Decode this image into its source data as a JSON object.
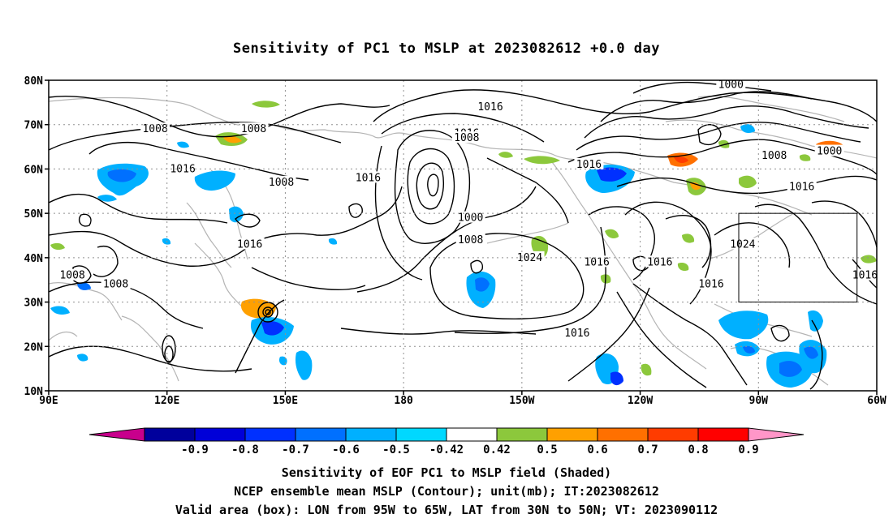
{
  "title": "Sensitivity of PC1 to MSLP at 2023082612 +0.0 day",
  "map": {
    "lon_range": [
      90,
      300
    ],
    "lat_range": [
      10,
      80
    ],
    "lat_ticks": [
      "10N",
      "20N",
      "30N",
      "40N",
      "50N",
      "60N",
      "70N",
      "80N"
    ],
    "lon_ticks": [
      "90E",
      "120E",
      "150E",
      "180",
      "150W",
      "120W",
      "90W",
      "60W"
    ],
    "valid_box": {
      "lon_west": -95,
      "lon_east": -65,
      "lat_south": 30,
      "lat_north": 50
    },
    "contour_labels": [
      {
        "text": "1016",
        "lon": 202,
        "lat": 74
      },
      {
        "text": "1000",
        "lon": 263,
        "lat": 79
      },
      {
        "text": "1008",
        "lon": 117,
        "lat": 69
      },
      {
        "text": "1008",
        "lon": 142,
        "lat": 69
      },
      {
        "text": "1016",
        "lon": 196,
        "lat": 68
      },
      {
        "text": "1008",
        "lon": 196,
        "lat": 67
      },
      {
        "text": "1016",
        "lon": 124,
        "lat": 60
      },
      {
        "text": "1008",
        "lon": 149,
        "lat": 57
      },
      {
        "text": "1016",
        "lon": 171,
        "lat": 58
      },
      {
        "text": "1016",
        "lon": 227,
        "lat": 61
      },
      {
        "text": "1008",
        "lon": 274,
        "lat": 63
      },
      {
        "text": "1000",
        "lon": 288,
        "lat": 64
      },
      {
        "text": "1016",
        "lon": 281,
        "lat": 56
      },
      {
        "text": "1000",
        "lon": 197,
        "lat": 49
      },
      {
        "text": "1008",
        "lon": 197,
        "lat": 44
      },
      {
        "text": "1016",
        "lon": 141,
        "lat": 43
      },
      {
        "text": "1024",
        "lon": 266,
        "lat": 43
      },
      {
        "text": "1024",
        "lon": 212,
        "lat": 40
      },
      {
        "text": "1016",
        "lon": 229,
        "lat": 39
      },
      {
        "text": "1016",
        "lon": 245,
        "lat": 39
      },
      {
        "text": "1008",
        "lon": 96,
        "lat": 36
      },
      {
        "text": "1008",
        "lon": 107,
        "lat": 34
      },
      {
        "text": "1016",
        "lon": 258,
        "lat": 34
      },
      {
        "text": "1016",
        "lon": 297,
        "lat": 36
      },
      {
        "text": "1016",
        "lon": 224,
        "lat": 23
      }
    ]
  },
  "colorbar": {
    "labels": [
      "-0.9",
      "-0.8",
      "-0.7",
      "-0.6",
      "-0.5",
      "-0.42",
      "0.42",
      "0.5",
      "0.6",
      "0.7",
      "0.8",
      "0.9"
    ],
    "colors": [
      "#00009c",
      "#0000d8",
      "#0030ff",
      "#0070ff",
      "#00b0ff",
      "#00d8ff",
      "#ffffff",
      "#8cc83c",
      "#ffa000",
      "#ff7000",
      "#ff3c00",
      "#ff0000"
    ],
    "under_color": "#c8008c",
    "over_color": "#ff96c8"
  },
  "captions": {
    "line1": "Sensitivity of EOF PC1 to MSLP field (Shaded)",
    "line2": "NCEP ensemble mean MSLP (Contour); unit(mb); IT:2023082612",
    "line3": "Valid area (box): LON from 95W to 65W, LAT from 30N to 50N; VT: 2023090112"
  }
}
